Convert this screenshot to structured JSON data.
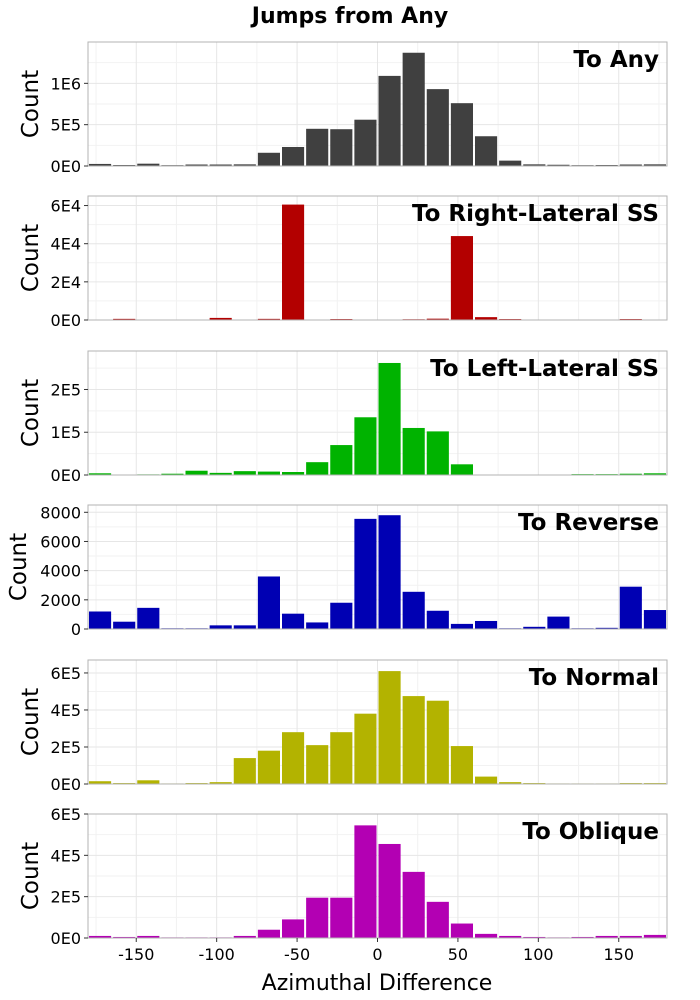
{
  "chart_data": {
    "type": "bar",
    "title": "Jumps from Any",
    "xlabel": "Azimuthal Difference",
    "xlim": [
      -180,
      180
    ],
    "x_ticks": [
      "-150",
      "-100",
      "-50",
      "0",
      "50",
      "100",
      "150"
    ],
    "x_tick_values": [
      -150,
      -100,
      -50,
      0,
      50,
      100,
      150
    ],
    "bin_centers": [
      -172.5,
      -157.5,
      -142.5,
      -127.5,
      -112.5,
      -97.5,
      -82.5,
      -67.5,
      -52.5,
      -37.5,
      -22.5,
      -7.5,
      7.5,
      22.5,
      37.5,
      52.5,
      67.5,
      82.5,
      97.5,
      112.5,
      127.5,
      142.5,
      157.5,
      172.5
    ],
    "grid": true,
    "panels": [
      {
        "label": "To Any",
        "ylabel": "Count",
        "color": "#404040",
        "ylim": [
          0,
          1500000
        ],
        "y_ticks": [
          "0E0",
          "5E5",
          "1E6"
        ],
        "y_tick_values": [
          0,
          500000,
          1000000
        ],
        "values": [
          25000,
          12000,
          28000,
          10000,
          18000,
          18000,
          20000,
          160000,
          230000,
          450000,
          445000,
          560000,
          1090000,
          1370000,
          930000,
          760000,
          360000,
          65000,
          20000,
          15000,
          10000,
          12000,
          18000,
          20000
        ]
      },
      {
        "label": "To Right-Lateral SS",
        "ylabel": "Count",
        "color": "#b30000",
        "ylim": [
          0,
          65000
        ],
        "y_ticks": [
          "0E0",
          "2E4",
          "4E4",
          "6E4"
        ],
        "y_tick_values": [
          0,
          20000,
          40000,
          60000
        ],
        "values": [
          100,
          600,
          150,
          250,
          100,
          1100,
          200,
          600,
          60500,
          100,
          500,
          150,
          100,
          400,
          700,
          44000,
          1500,
          500,
          100,
          100,
          150,
          100,
          500,
          100
        ]
      },
      {
        "label": "To Left-Lateral SS",
        "ylabel": "Count",
        "color": "#00b300",
        "ylim": [
          0,
          290000
        ],
        "y_ticks": [
          "0E0",
          "1E5",
          "2E5"
        ],
        "y_tick_values": [
          0,
          100000,
          200000
        ],
        "values": [
          4000,
          1000,
          1500,
          3000,
          10000,
          5000,
          9000,
          8000,
          7000,
          30000,
          70000,
          135000,
          262000,
          110000,
          102000,
          25000,
          1000,
          500,
          500,
          1000,
          2000,
          2000,
          3000,
          4000
        ]
      },
      {
        "label": "To Reverse",
        "ylabel": "Count",
        "color": "#0000b3",
        "ylim": [
          0,
          8500
        ],
        "y_ticks": [
          "0",
          "2000",
          "4000",
          "6000",
          "8000"
        ],
        "y_tick_values": [
          0,
          2000,
          4000,
          6000,
          8000
        ],
        "values": [
          1200,
          500,
          1450,
          50,
          50,
          250,
          250,
          3600,
          1050,
          450,
          1800,
          7550,
          7800,
          2550,
          1250,
          350,
          550,
          50,
          150,
          850,
          50,
          80,
          2900,
          1300
        ]
      },
      {
        "label": "To Normal",
        "ylabel": "Count",
        "color": "#b3b300",
        "ylim": [
          0,
          670000
        ],
        "y_ticks": [
          "0E0",
          "2E5",
          "4E5",
          "6E5"
        ],
        "y_tick_values": [
          0,
          200000,
          400000,
          600000
        ],
        "values": [
          15000,
          5000,
          20000,
          3000,
          5000,
          10000,
          140000,
          180000,
          280000,
          210000,
          280000,
          380000,
          610000,
          475000,
          450000,
          205000,
          40000,
          10000,
          5000,
          3000,
          3000,
          3000,
          5000,
          5000
        ]
      },
      {
        "label": "To Oblique",
        "ylabel": "Count",
        "color": "#b300b3",
        "ylim": [
          0,
          600000
        ],
        "y_ticks": [
          "0E0",
          "2E5",
          "4E5",
          "6E5"
        ],
        "y_tick_values": [
          0,
          200000,
          400000,
          600000
        ],
        "values": [
          10000,
          5000,
          10000,
          3000,
          3000,
          3000,
          10000,
          40000,
          90000,
          195000,
          195000,
          545000,
          455000,
          320000,
          175000,
          70000,
          20000,
          10000,
          5000,
          3000,
          5000,
          10000,
          10000,
          15000
        ]
      }
    ]
  }
}
